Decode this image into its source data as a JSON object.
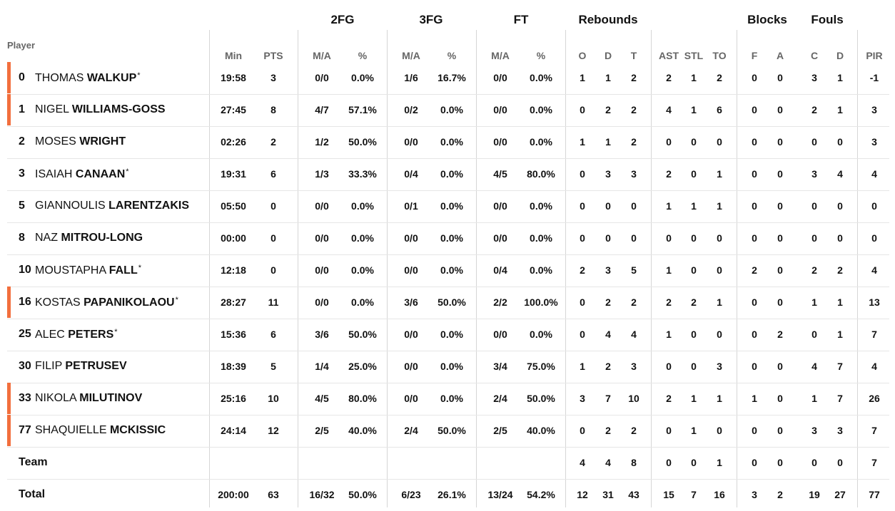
{
  "groups": [
    {
      "key": "2fg",
      "label": "2FG"
    },
    {
      "key": "3fg",
      "label": "3FG"
    },
    {
      "key": "ft",
      "label": "FT"
    },
    {
      "key": "reb",
      "label": "Rebounds"
    },
    {
      "key": "blk",
      "label": "Blocks"
    },
    {
      "key": "fouls",
      "label": "Fouls"
    }
  ],
  "player_header": "Player",
  "columns": [
    "Min",
    "PTS",
    "M/A",
    "%",
    "M/A",
    "%",
    "M/A",
    "%",
    "O",
    "D",
    "T",
    "AST",
    "STL",
    "TO",
    "F",
    "A",
    "C",
    "D",
    "PIR"
  ],
  "accent_color": "#f26f3d",
  "players": [
    {
      "number": "0",
      "first": "THOMAS",
      "last": "WALKUP",
      "star": true,
      "starter": true,
      "stats": [
        "19:58",
        "3",
        "0/0",
        "0.0%",
        "1/6",
        "16.7%",
        "0/0",
        "0.0%",
        "1",
        "1",
        "2",
        "2",
        "1",
        "2",
        "0",
        "0",
        "3",
        "1",
        "-1"
      ]
    },
    {
      "number": "1",
      "first": "NIGEL",
      "last": "WILLIAMS-GOSS",
      "star": false,
      "starter": true,
      "stats": [
        "27:45",
        "8",
        "4/7",
        "57.1%",
        "0/2",
        "0.0%",
        "0/0",
        "0.0%",
        "0",
        "2",
        "2",
        "4",
        "1",
        "6",
        "0",
        "0",
        "2",
        "1",
        "3"
      ]
    },
    {
      "number": "2",
      "first": "MOSES",
      "last": "WRIGHT",
      "star": false,
      "starter": false,
      "stats": [
        "02:26",
        "2",
        "1/2",
        "50.0%",
        "0/0",
        "0.0%",
        "0/0",
        "0.0%",
        "1",
        "1",
        "2",
        "0",
        "0",
        "0",
        "0",
        "0",
        "0",
        "0",
        "3"
      ]
    },
    {
      "number": "3",
      "first": "ISAIAH",
      "last": "CANAAN",
      "star": true,
      "starter": false,
      "stats": [
        "19:31",
        "6",
        "1/3",
        "33.3%",
        "0/4",
        "0.0%",
        "4/5",
        "80.0%",
        "0",
        "3",
        "3",
        "2",
        "0",
        "1",
        "0",
        "0",
        "3",
        "4",
        "4"
      ]
    },
    {
      "number": "5",
      "first": "GIANNOULIS",
      "last": "LARENTZAKIS",
      "star": false,
      "starter": false,
      "stats": [
        "05:50",
        "0",
        "0/0",
        "0.0%",
        "0/1",
        "0.0%",
        "0/0",
        "0.0%",
        "0",
        "0",
        "0",
        "1",
        "1",
        "1",
        "0",
        "0",
        "0",
        "0",
        "0"
      ]
    },
    {
      "number": "8",
      "first": "NAZ",
      "last": "MITROU-LONG",
      "star": false,
      "starter": false,
      "stats": [
        "00:00",
        "0",
        "0/0",
        "0.0%",
        "0/0",
        "0.0%",
        "0/0",
        "0.0%",
        "0",
        "0",
        "0",
        "0",
        "0",
        "0",
        "0",
        "0",
        "0",
        "0",
        "0"
      ]
    },
    {
      "number": "10",
      "first": "MOUSTAPHA",
      "last": "FALL",
      "star": true,
      "starter": false,
      "stats": [
        "12:18",
        "0",
        "0/0",
        "0.0%",
        "0/0",
        "0.0%",
        "0/4",
        "0.0%",
        "2",
        "3",
        "5",
        "1",
        "0",
        "0",
        "2",
        "0",
        "2",
        "2",
        "4"
      ]
    },
    {
      "number": "16",
      "first": "KOSTAS",
      "last": "PAPANIKOLAOU",
      "star": true,
      "starter": true,
      "stats": [
        "28:27",
        "11",
        "0/0",
        "0.0%",
        "3/6",
        "50.0%",
        "2/2",
        "100.0%",
        "0",
        "2",
        "2",
        "2",
        "2",
        "1",
        "0",
        "0",
        "1",
        "1",
        "13"
      ]
    },
    {
      "number": "25",
      "first": "ALEC",
      "last": "PETERS",
      "star": true,
      "starter": false,
      "stats": [
        "15:36",
        "6",
        "3/6",
        "50.0%",
        "0/0",
        "0.0%",
        "0/0",
        "0.0%",
        "0",
        "4",
        "4",
        "1",
        "0",
        "0",
        "0",
        "2",
        "0",
        "1",
        "7"
      ]
    },
    {
      "number": "30",
      "first": "FILIP",
      "last": "PETRUSEV",
      "star": false,
      "starter": false,
      "stats": [
        "18:39",
        "5",
        "1/4",
        "25.0%",
        "0/0",
        "0.0%",
        "3/4",
        "75.0%",
        "1",
        "2",
        "3",
        "0",
        "0",
        "3",
        "0",
        "0",
        "4",
        "7",
        "4"
      ]
    },
    {
      "number": "33",
      "first": "NIKOLA",
      "last": "MILUTINOV",
      "star": false,
      "starter": true,
      "stats": [
        "25:16",
        "10",
        "4/5",
        "80.0%",
        "0/0",
        "0.0%",
        "2/4",
        "50.0%",
        "3",
        "7",
        "10",
        "2",
        "1",
        "1",
        "1",
        "0",
        "1",
        "7",
        "26"
      ]
    },
    {
      "number": "77",
      "first": "SHAQUIELLE",
      "last": "MCKISSIC",
      "star": false,
      "starter": true,
      "stats": [
        "24:14",
        "12",
        "2/5",
        "40.0%",
        "2/4",
        "50.0%",
        "2/5",
        "40.0%",
        "0",
        "2",
        "2",
        "0",
        "1",
        "0",
        "0",
        "0",
        "3",
        "3",
        "7"
      ]
    }
  ],
  "team_row": {
    "label": "Team",
    "stats": [
      "",
      "",
      "",
      "",
      "",
      "",
      "",
      "",
      "4",
      "4",
      "8",
      "0",
      "0",
      "1",
      "0",
      "0",
      "0",
      "0",
      "7"
    ]
  },
  "total_row": {
    "label": "Total",
    "stats": [
      "200:00",
      "63",
      "16/32",
      "50.0%",
      "6/23",
      "26.1%",
      "13/24",
      "54.2%",
      "12",
      "31",
      "43",
      "15",
      "7",
      "16",
      "3",
      "2",
      "19",
      "27",
      "77"
    ]
  },
  "star_glyph": "*"
}
